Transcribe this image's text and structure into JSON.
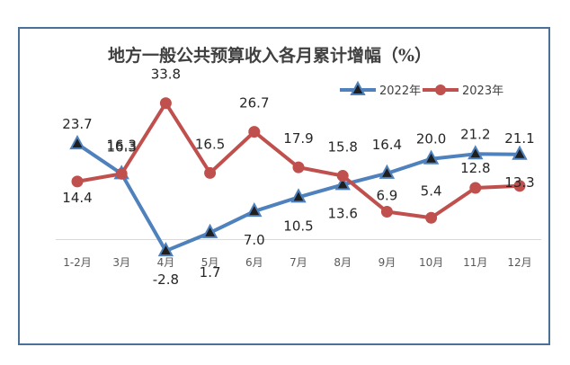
{
  "chart_data": {
    "type": "line",
    "title": "地方一般公共预算收入各月累计增幅（%）",
    "categories": [
      "1-2月",
      "3月",
      "4月",
      "5月",
      "6月",
      "7月",
      "8月",
      "9月",
      "10月",
      "11月",
      "12月"
    ],
    "series": [
      {
        "name": "2022年",
        "color": "#4f81bd",
        "marker": "triangle",
        "values": [
          23.7,
          16.3,
          -2.8,
          1.7,
          7.0,
          10.5,
          13.6,
          16.4,
          20.0,
          21.2,
          21.1
        ],
        "labels": [
          "23.7",
          "16.3",
          "-2.8",
          "1.7",
          "7.0",
          "10.5",
          "13.6",
          "16.4",
          "20.0",
          "21.2",
          "21.1"
        ]
      },
      {
        "name": "2023年",
        "color": "#c0504d",
        "marker": "circle",
        "values": [
          14.4,
          16.3,
          33.8,
          16.5,
          26.7,
          17.9,
          15.8,
          6.9,
          5.4,
          12.8,
          13.3
        ],
        "labels": [
          "14.4",
          "16.3",
          "33.8",
          "16.5",
          "26.7",
          "17.9",
          "15.8",
          "6.9",
          "5.4",
          "12.8",
          "13.3"
        ]
      }
    ],
    "legend_position": "top-right",
    "grid": false,
    "zero_line": true
  }
}
